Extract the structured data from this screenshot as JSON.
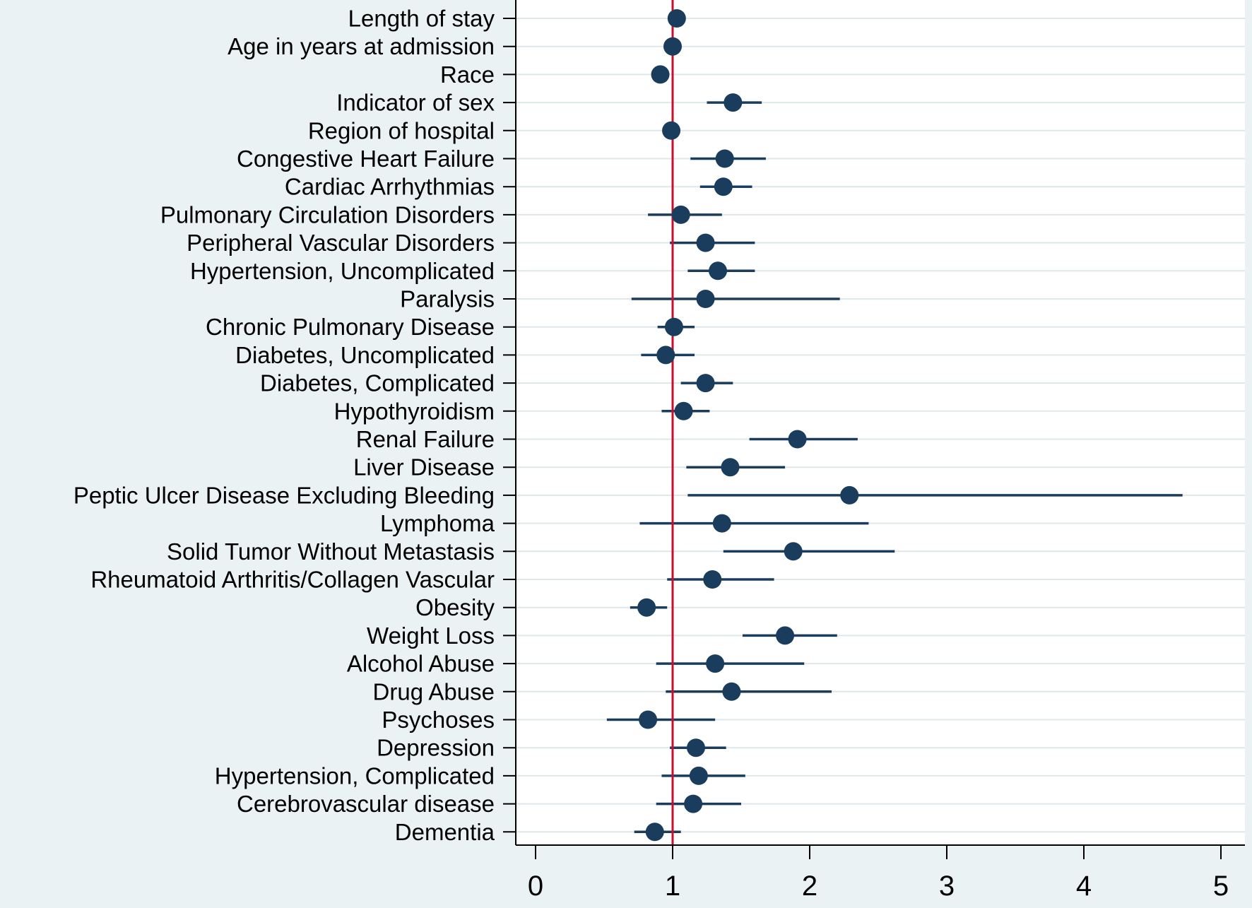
{
  "chart_data": {
    "type": "scatter",
    "orientation": "horizontal",
    "title": "",
    "xlabel": "",
    "ylabel": "",
    "xlim": [
      0,
      5
    ],
    "x_ticks": [
      "0",
      "1",
      "2",
      "3",
      "4",
      "5"
    ],
    "reference_line": 1,
    "grid": "horizontal",
    "colors": {
      "background": "#eaf2f3",
      "plot_background": "#ffffff",
      "marker": "#1a3d5e",
      "reference_line": "#c8102e",
      "grid": "#dfe7ea",
      "axis": "#000000"
    },
    "categories": [
      "Length of stay",
      "Age in years at admission",
      "Race",
      "Indicator of sex",
      "Region of hospital",
      "Congestive Heart Failure",
      "Cardiac Arrhythmias",
      "Pulmonary Circulation Disorders",
      "Peripheral Vascular Disorders",
      "Hypertension, Uncomplicated",
      "Paralysis",
      "Chronic Pulmonary Disease",
      "Diabetes, Uncomplicated",
      "Diabetes, Complicated",
      "Hypothyroidism",
      "Renal Failure",
      "Liver Disease",
      "Peptic Ulcer Disease Excluding Bleeding",
      "Lymphoma",
      "Solid Tumor Without Metastasis",
      "Rheumatoid Arthritis/Collagen Vascular",
      "Obesity",
      "Weight Loss",
      "Alcohol Abuse",
      "Drug Abuse",
      "Psychoses",
      "Depression",
      "Hypertension, Complicated",
      "Cerebrovascular disease",
      "Dementia"
    ],
    "estimates": [
      1.03,
      1.0,
      0.91,
      1.44,
      0.99,
      1.38,
      1.37,
      1.06,
      1.24,
      1.33,
      1.24,
      1.01,
      0.95,
      1.24,
      1.08,
      1.91,
      1.42,
      2.29,
      1.36,
      1.88,
      1.29,
      0.81,
      1.82,
      1.31,
      1.43,
      0.82,
      1.17,
      1.19,
      1.15,
      0.87
    ],
    "ci_lower": [
      1.02,
      0.99,
      0.89,
      1.25,
      0.97,
      1.13,
      1.2,
      0.82,
      0.98,
      1.11,
      0.7,
      0.89,
      0.77,
      1.06,
      0.92,
      1.56,
      1.1,
      1.11,
      0.76,
      1.37,
      0.96,
      0.69,
      1.51,
      0.88,
      0.95,
      0.52,
      0.98,
      0.92,
      0.88,
      0.72
    ],
    "ci_upper": [
      1.04,
      1.01,
      0.93,
      1.65,
      1.01,
      1.68,
      1.58,
      1.36,
      1.6,
      1.6,
      2.22,
      1.16,
      1.16,
      1.44,
      1.27,
      2.35,
      1.82,
      4.72,
      2.43,
      2.62,
      1.74,
      0.96,
      2.2,
      1.96,
      2.16,
      1.31,
      1.39,
      1.53,
      1.5,
      1.06
    ]
  }
}
